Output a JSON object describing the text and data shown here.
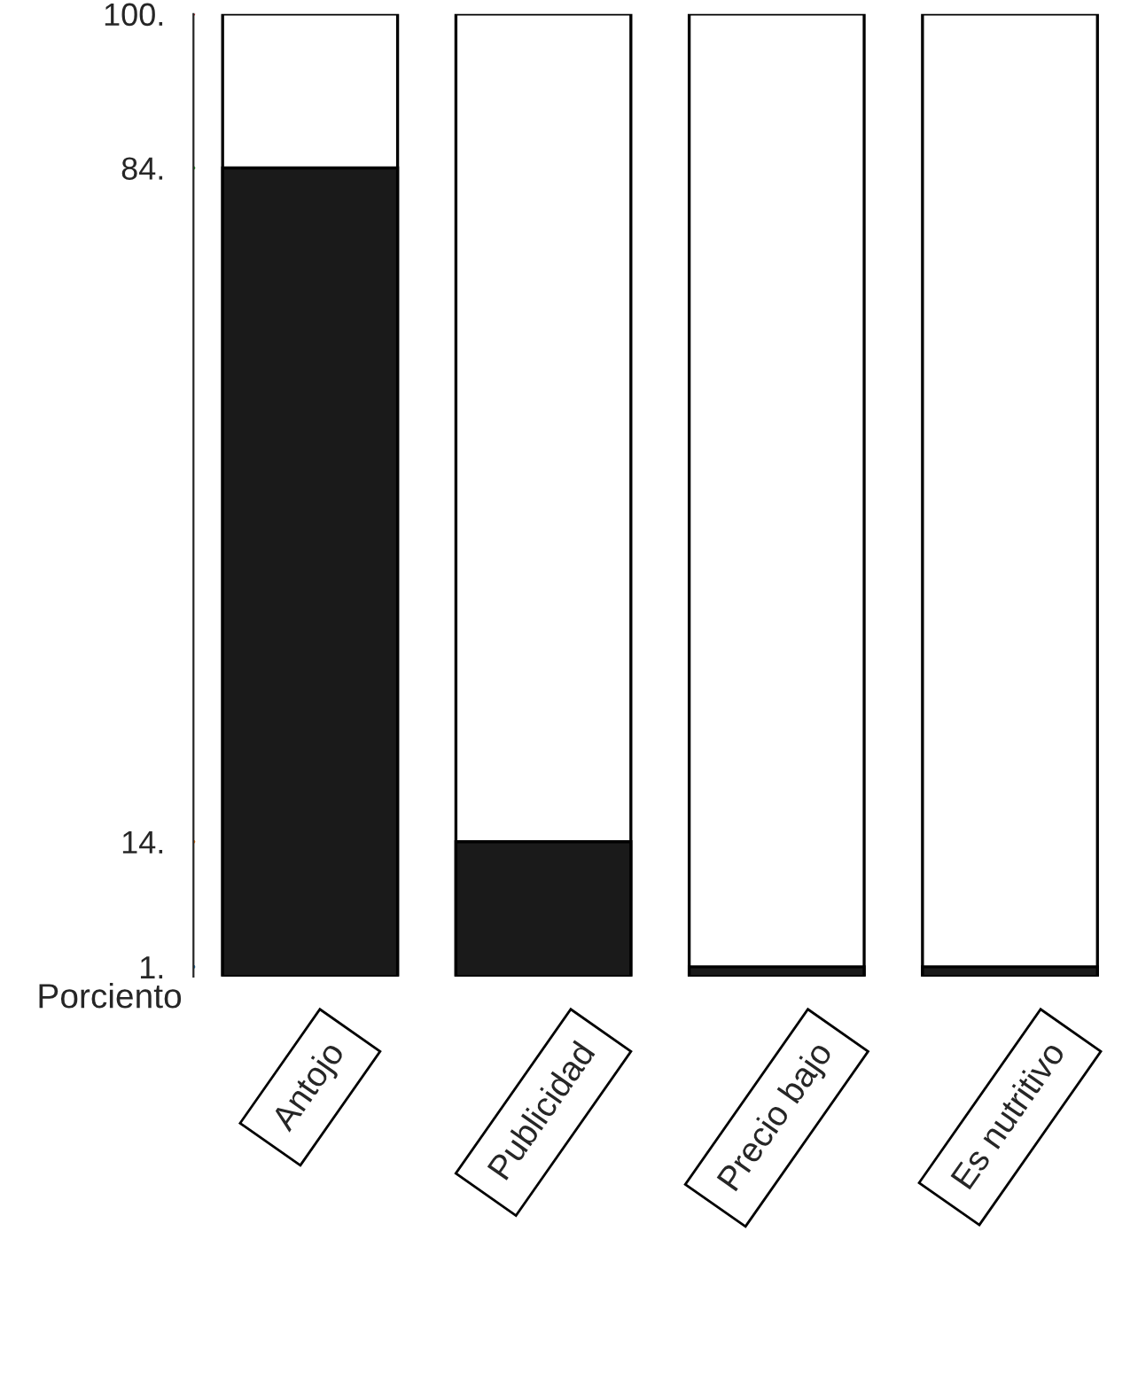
{
  "chart_data": {
    "type": "bar",
    "ylabel": "Porciento",
    "categories": [
      "Antojo",
      "Publicidad",
      "Precio bajo",
      "Es nutritivo"
    ],
    "values": [
      84,
      14,
      1,
      1
    ],
    "color": "#1a1a1a",
    "ylim": [
      0,
      100
    ],
    "yticks": [
      {
        "value": 1,
        "label": "1."
      },
      {
        "value": 14,
        "label": "14."
      },
      {
        "value": 84,
        "label": "84."
      },
      {
        "value": 100,
        "label": "100."
      }
    ],
    "grid": false,
    "legend": false
  }
}
